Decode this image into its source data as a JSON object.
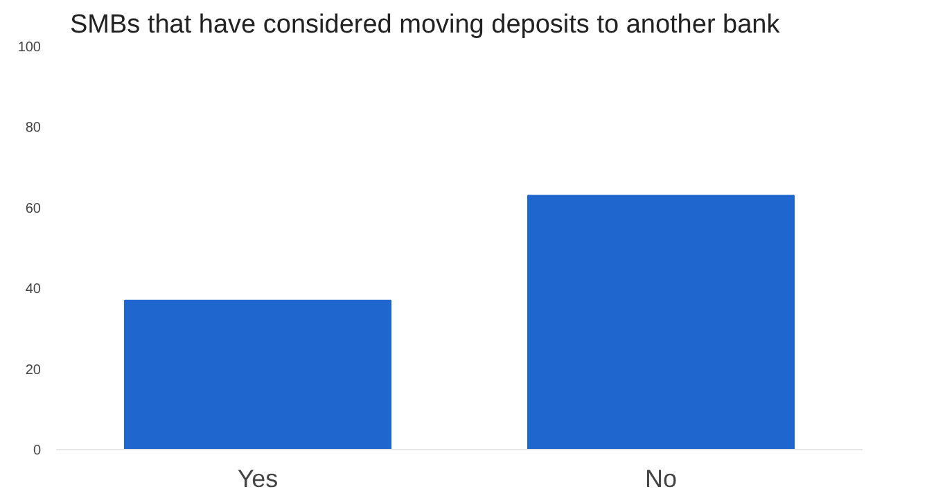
{
  "chart_data": {
    "type": "bar",
    "title": "SMBs that have considered moving deposits to another bank",
    "categories": [
      "Yes",
      "No"
    ],
    "values": [
      37,
      63
    ],
    "color": "#1f66cf",
    "ylim": [
      0,
      100
    ],
    "yticks": [
      0,
      20,
      40,
      60,
      80,
      100
    ],
    "grid": false
  }
}
